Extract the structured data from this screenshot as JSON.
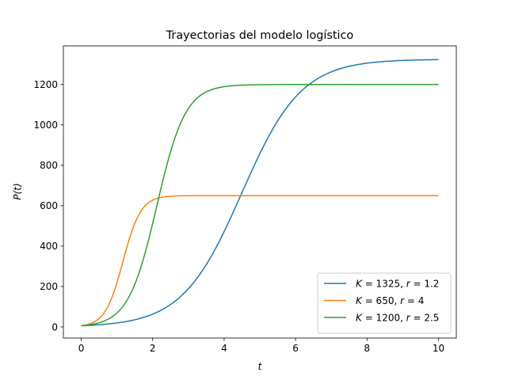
{
  "chart_data": {
    "type": "line",
    "title": "Trayectorias del modelo logístico",
    "xlabel": "t",
    "ylabel": "P(t)",
    "xlim": [
      -0.5,
      10.5
    ],
    "ylim": [
      -55,
      1391
    ],
    "xticks": [
      0,
      2,
      4,
      6,
      8,
      10
    ],
    "yticks": [
      0,
      200,
      400,
      600,
      800,
      1000,
      1200
    ],
    "grid": false,
    "legend_position": "lower-right",
    "series": [
      {
        "name": "K = 1325, r = 1.2",
        "legend": {
          "K": "1325",
          "r": "1.2"
        },
        "model": "logistic",
        "K": 1325,
        "r": 1.2,
        "P0": 6,
        "color": "#1f77b4",
        "x": [
          0,
          1,
          2,
          3,
          4,
          4.5,
          5,
          6,
          7,
          8,
          9,
          10
        ],
        "values": [
          6,
          18,
          55,
          160,
          445,
          645,
          875,
          1210,
          1305,
          1321,
          1324,
          1325
        ]
      },
      {
        "name": "K = 650, r = 4",
        "legend": {
          "K": "650",
          "r": "4"
        },
        "model": "logistic",
        "K": 650,
        "r": 4,
        "P0": 6,
        "color": "#ff7f0e",
        "x": [
          0,
          0.5,
          1,
          1.5,
          2,
          2.5,
          3,
          4,
          6,
          8,
          10
        ],
        "values": [
          6,
          42,
          220,
          540,
          637,
          649,
          650,
          650,
          650,
          650,
          650
        ]
      },
      {
        "name": "K = 1200, r = 2.5",
        "legend": {
          "K": "1200",
          "r": "2.5"
        },
        "model": "logistic",
        "K": 1200,
        "r": 2.5,
        "P0": 6,
        "color": "#2ca02c",
        "x": [
          0,
          1,
          1.5,
          2,
          2.5,
          3,
          3.5,
          4,
          5,
          6,
          8,
          10
        ],
        "values": [
          6,
          69,
          220,
          545,
          908,
          1116,
          1180,
          1196,
          1200,
          1200,
          1200,
          1200
        ]
      }
    ]
  }
}
